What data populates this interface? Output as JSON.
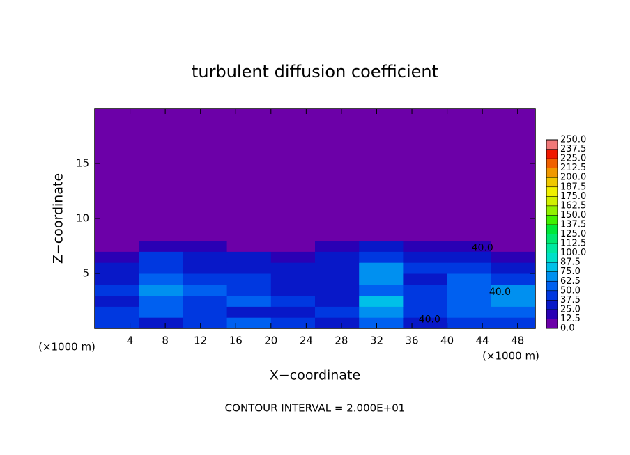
{
  "chart_data": {
    "type": "heatmap",
    "title": "turbulent diffusion coefficient",
    "x_label": "X−coordinate",
    "y_label": "Z−coordinate",
    "x_unit_left": "(×1000 m)",
    "x_unit_right": "(×1000 m)",
    "footer": "CONTOUR INTERVAL = 2.000E+01",
    "xlim": [
      0,
      50
    ],
    "ylim": [
      0,
      20
    ],
    "xticks": [
      4,
      8,
      12,
      16,
      20,
      24,
      28,
      32,
      36,
      40,
      44,
      48
    ],
    "yticks": [
      5,
      10,
      15
    ],
    "x_edges": [
      0,
      5,
      10,
      15,
      20,
      25,
      30,
      35,
      40,
      45,
      50
    ],
    "y_edges": [
      0,
      1,
      2,
      3,
      4,
      5,
      6,
      7,
      8,
      20
    ],
    "z": [
      [
        40,
        30,
        45,
        55,
        40,
        35,
        50,
        30,
        45,
        40
      ],
      [
        45,
        55,
        40,
        35,
        30,
        45,
        70,
        40,
        55,
        60
      ],
      [
        35,
        60,
        45,
        50,
        40,
        35,
        75,
        45,
        50,
        70
      ],
      [
        40,
        65,
        50,
        45,
        35,
        30,
        60,
        40,
        55,
        65
      ],
      [
        30,
        55,
        45,
        40,
        30,
        30,
        65,
        35,
        60,
        45
      ],
      [
        30,
        40,
        35,
        30,
        25,
        35,
        70,
        40,
        45,
        30
      ],
      [
        20,
        45,
        30,
        25,
        20,
        25,
        45,
        30,
        35,
        20
      ],
      [
        10,
        20,
        15,
        10,
        5,
        15,
        25,
        20,
        15,
        5
      ],
      [
        0,
        0,
        0,
        0,
        0,
        0,
        0,
        0,
        0,
        0
      ]
    ],
    "colorbar_ticks": [
      {
        "value": 0,
        "label": "0.0"
      },
      12.5,
      {
        "value": 25,
        "label": "25.0"
      },
      37.5,
      {
        "value": 50,
        "label": "50.0"
      },
      62.5,
      {
        "value": 75,
        "label": "75.0"
      },
      87.5,
      {
        "value": 100,
        "label": "100.0"
      },
      112.5,
      {
        "value": 125,
        "label": "125.0"
      },
      137.5,
      {
        "value": 150,
        "label": "150.0"
      },
      162.5,
      {
        "value": 175,
        "label": "175.0"
      },
      187.5,
      {
        "value": 200,
        "label": "200.0"
      },
      212.5,
      {
        "value": 225,
        "label": "225.0"
      },
      237.5,
      {
        "value": 250,
        "label": "250.0"
      }
    ],
    "colors": [
      "#6c00a8",
      "#2a00b4",
      "#0818c8",
      "#0038e0",
      "#0060f0",
      "#0090f0",
      "#00c0e8",
      "#00e0c8",
      "#00e8a0",
      "#00e870",
      "#00e838",
      "#40f000",
      "#90f000",
      "#d0f000",
      "#f0f000",
      "#f0c800",
      "#f09800",
      "#f06000",
      "#f01800",
      "#f07878"
    ],
    "contour_labels": {
      "x": [
        38,
        44,
        46
      ],
      "y": [
        0.8,
        7.3,
        3.3
      ],
      "values": [
        40,
        40,
        40
      ],
      "value_labels": [
        "40.0",
        "40.0",
        "40.0"
      ]
    }
  }
}
